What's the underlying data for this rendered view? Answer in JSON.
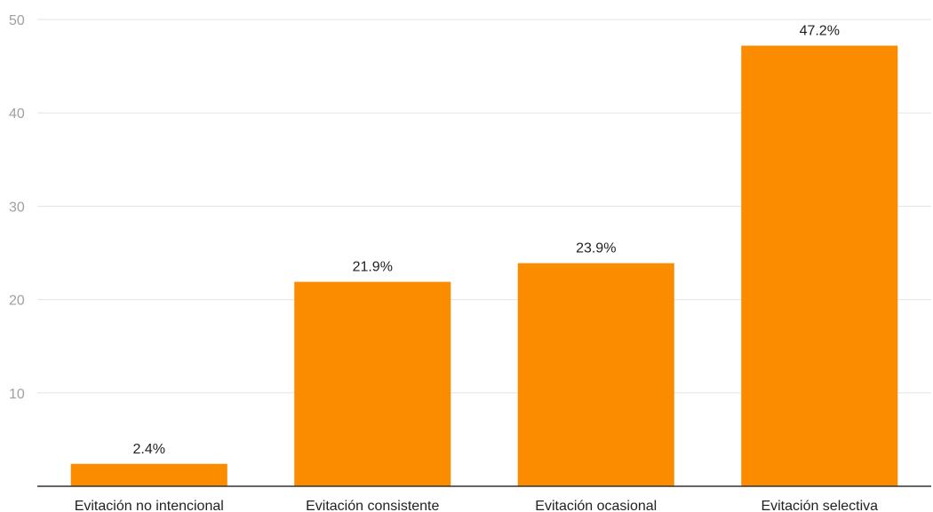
{
  "chart_data": {
    "type": "bar",
    "categories": [
      "Evitación no intencional",
      "Evitación consistente",
      "Evitación ocasional",
      "Evitación selectiva"
    ],
    "values": [
      2.4,
      21.9,
      23.9,
      47.2
    ],
    "data_labels": [
      "2.4%",
      "21.9%",
      "23.9%",
      "47.2%"
    ],
    "ylim": [
      0,
      50
    ],
    "yticks": [
      10,
      20,
      30,
      40,
      50
    ],
    "ytick_labels": [
      "10",
      "20",
      "30",
      "40",
      "50"
    ],
    "title": "",
    "xlabel": "",
    "ylabel": "",
    "grid": true,
    "bar_color": "#fb8c00"
  }
}
